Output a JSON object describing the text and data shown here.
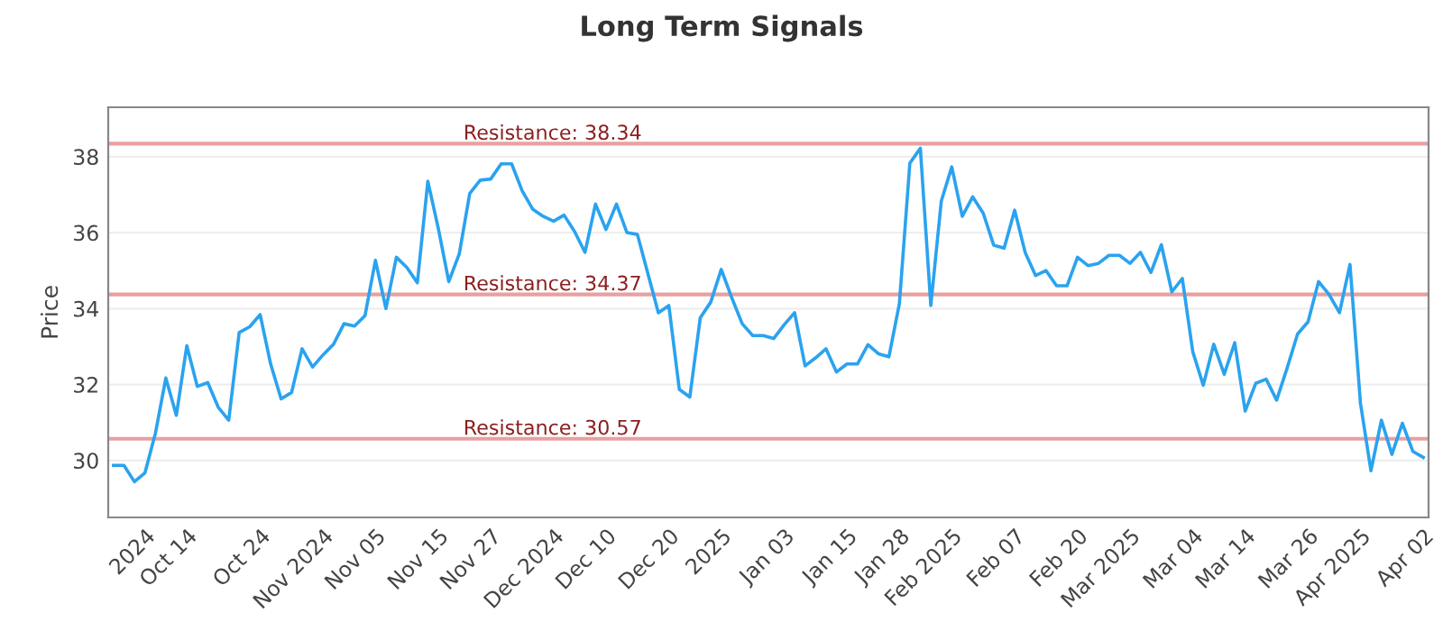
{
  "chart_data": {
    "type": "line",
    "title": "Long Term Signals",
    "ylabel": "Price",
    "categories": [
      null,
      null,
      null,
      "2024",
      null,
      null,
      null,
      "Oct 14",
      null,
      null,
      null,
      null,
      null,
      null,
      "Oct 24",
      null,
      null,
      null,
      null,
      null,
      "Nov 2024",
      null,
      null,
      null,
      null,
      "Nov 05",
      null,
      null,
      null,
      null,
      null,
      "Nov 15",
      null,
      null,
      null,
      null,
      "Nov 27",
      null,
      null,
      null,
      null,
      null,
      "Dec 2024",
      null,
      null,
      null,
      null,
      "Dec 10",
      null,
      null,
      null,
      null,
      null,
      "Dec 20",
      null,
      null,
      null,
      null,
      "2025",
      null,
      null,
      null,
      null,
      null,
      "Jan 03",
      null,
      null,
      null,
      null,
      null,
      "Jan 15",
      null,
      null,
      null,
      null,
      "Jan 28",
      null,
      null,
      null,
      null,
      "Feb 2025",
      null,
      null,
      null,
      null,
      null,
      "Feb 07",
      null,
      null,
      null,
      null,
      null,
      "Feb 20",
      null,
      null,
      null,
      null,
      "Mar 2025",
      null,
      null,
      null,
      null,
      null,
      "Mar 04",
      null,
      null,
      null,
      null,
      "Mar 14",
      null,
      null,
      null,
      null,
      null,
      "Mar 26",
      null,
      null,
      null,
      null,
      "Apr 2025",
      null,
      null,
      null,
      null,
      null,
      "Apr 02"
    ],
    "series": [
      {
        "color": "#2aa3ef",
        "values": [
          29.87,
          29.87,
          29.44,
          29.67,
          30.71,
          32.17,
          31.19,
          33.02,
          31.95,
          32.05,
          31.4,
          31.06,
          33.37,
          33.52,
          33.84,
          32.54,
          31.62,
          31.79,
          32.94,
          32.46,
          32.78,
          33.06,
          33.6,
          33.54,
          33.81,
          35.27,
          34.0,
          35.35,
          35.08,
          34.68,
          37.35,
          36.11,
          34.71,
          35.44,
          37.03,
          37.38,
          37.41,
          37.81,
          37.81,
          37.1,
          36.62,
          36.43,
          36.3,
          36.46,
          36.03,
          35.48,
          36.75,
          36.08,
          36.75,
          36.0,
          35.95,
          34.92,
          33.89,
          34.08,
          31.87,
          31.67,
          33.76,
          34.17,
          35.03,
          34.29,
          33.6,
          33.29,
          33.29,
          33.21,
          33.57,
          33.89,
          32.49,
          32.7,
          32.94,
          32.33,
          32.54,
          32.54,
          33.05,
          32.81,
          32.73,
          34.13,
          37.83,
          38.22,
          34.08,
          36.83,
          37.73,
          36.43,
          36.94,
          36.51,
          35.67,
          35.59,
          36.59,
          35.48,
          34.87,
          35.0,
          34.6,
          34.6,
          35.35,
          35.13,
          35.19,
          35.4,
          35.4,
          35.19,
          35.48,
          34.95,
          35.68,
          34.44,
          34.79,
          32.86,
          31.98,
          33.06,
          32.27,
          33.1,
          31.3,
          32.03,
          32.14,
          31.59,
          32.43,
          33.33,
          33.65,
          34.71,
          34.37,
          33.89,
          35.16,
          31.51,
          29.73,
          31.06,
          30.16,
          30.98,
          30.24,
          30.08
        ]
      }
    ],
    "ylim": [
      28.5,
      39.3
    ],
    "yticks": [
      30,
      32,
      34,
      36,
      38
    ],
    "grid": "y",
    "line_style": "solid",
    "marker": "none",
    "ref_lines": [
      {
        "axis": "y",
        "value": 38.34,
        "label": "Resistance: 38.34",
        "color": "#e8a0a0"
      },
      {
        "axis": "y",
        "value": 34.37,
        "label": "Resistance: 34.37",
        "color": "#e8a0a0"
      },
      {
        "axis": "y",
        "value": 30.57,
        "label": "Resistance: 30.57",
        "color": "#e8a0a0"
      }
    ]
  }
}
